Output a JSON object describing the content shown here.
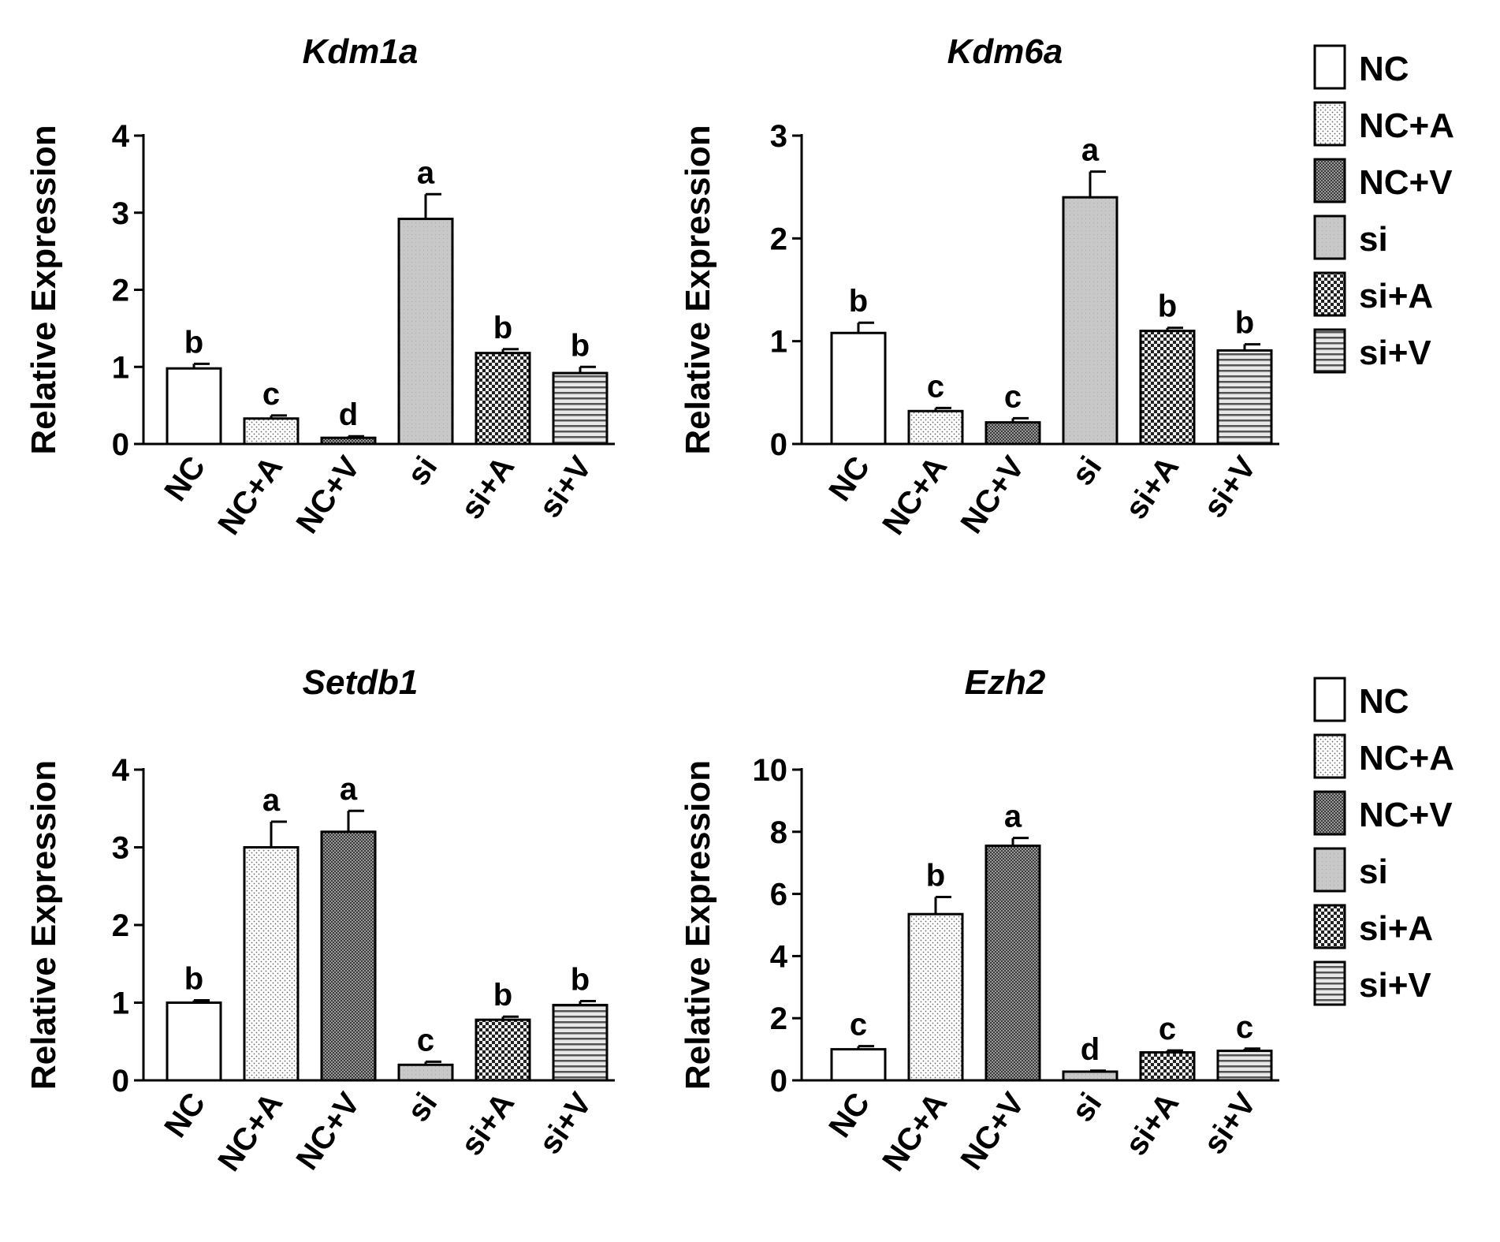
{
  "legend": [
    "NC",
    "NC+A",
    "NC+V",
    "si",
    "si+A",
    "si+V"
  ],
  "chart_data": [
    {
      "type": "bar",
      "title": "Kdm1a",
      "ylabel": "Relative Expression",
      "xlabel": "",
      "categories": [
        "NC",
        "NC+A",
        "NC+V",
        "si",
        "si+A",
        "si+V"
      ],
      "values": [
        0.98,
        0.33,
        0.08,
        2.92,
        1.18,
        0.92
      ],
      "errors": [
        0.06,
        0.04,
        0.02,
        0.32,
        0.05,
        0.08
      ],
      "significance": [
        "b",
        "c",
        "d",
        "a",
        "b",
        "b"
      ],
      "ylim": [
        0,
        4
      ],
      "yticks": [
        "0",
        "1",
        "2",
        "3",
        "4"
      ],
      "legend": [
        "NC",
        "NC+A",
        "NC+V",
        "si",
        "si+A",
        "si+V"
      ]
    },
    {
      "type": "bar",
      "title": "Kdm6a",
      "ylabel": "Relative Expression",
      "xlabel": "",
      "categories": [
        "NC",
        "NC+A",
        "NC+V",
        "si",
        "si+A",
        "si+V"
      ],
      "values": [
        1.08,
        0.32,
        0.21,
        2.4,
        1.1,
        0.91
      ],
      "errors": [
        0.1,
        0.03,
        0.04,
        0.25,
        0.03,
        0.06
      ],
      "significance": [
        "b",
        "c",
        "c",
        "a",
        "b",
        "b"
      ],
      "ylim": [
        0,
        3
      ],
      "yticks": [
        "0",
        "1",
        "2",
        "3"
      ],
      "legend": []
    },
    {
      "type": "bar",
      "title": "Setdb1",
      "ylabel": "Relative Expression",
      "xlabel": "",
      "categories": [
        "NC",
        "NC+A",
        "NC+V",
        "si",
        "si+A",
        "si+V"
      ],
      "values": [
        1.0,
        3.0,
        3.2,
        0.2,
        0.78,
        0.97
      ],
      "errors": [
        0.03,
        0.33,
        0.27,
        0.04,
        0.04,
        0.05
      ],
      "significance": [
        "b",
        "a",
        "a",
        "c",
        "b",
        "b"
      ],
      "ylim": [
        0,
        4
      ],
      "yticks": [
        "0",
        "1",
        "2",
        "3",
        "4"
      ],
      "legend": []
    },
    {
      "type": "bar",
      "title": "Ezh2",
      "ylabel": "Relative Expression",
      "xlabel": "",
      "categories": [
        "NC",
        "NC+A",
        "NC+V",
        "si",
        "si+A",
        "si+V"
      ],
      "values": [
        1.0,
        5.35,
        7.55,
        0.28,
        0.9,
        0.95
      ],
      "errors": [
        0.1,
        0.55,
        0.25,
        0.03,
        0.06,
        0.07
      ],
      "significance": [
        "c",
        "b",
        "a",
        "d",
        "c",
        "c"
      ],
      "ylim": [
        0,
        10
      ],
      "yticks": [
        "0",
        "2",
        "4",
        "6",
        "8",
        "10"
      ],
      "legend": [
        "NC",
        "NC+A",
        "NC+V",
        "si",
        "si+A",
        "si+V"
      ]
    }
  ]
}
